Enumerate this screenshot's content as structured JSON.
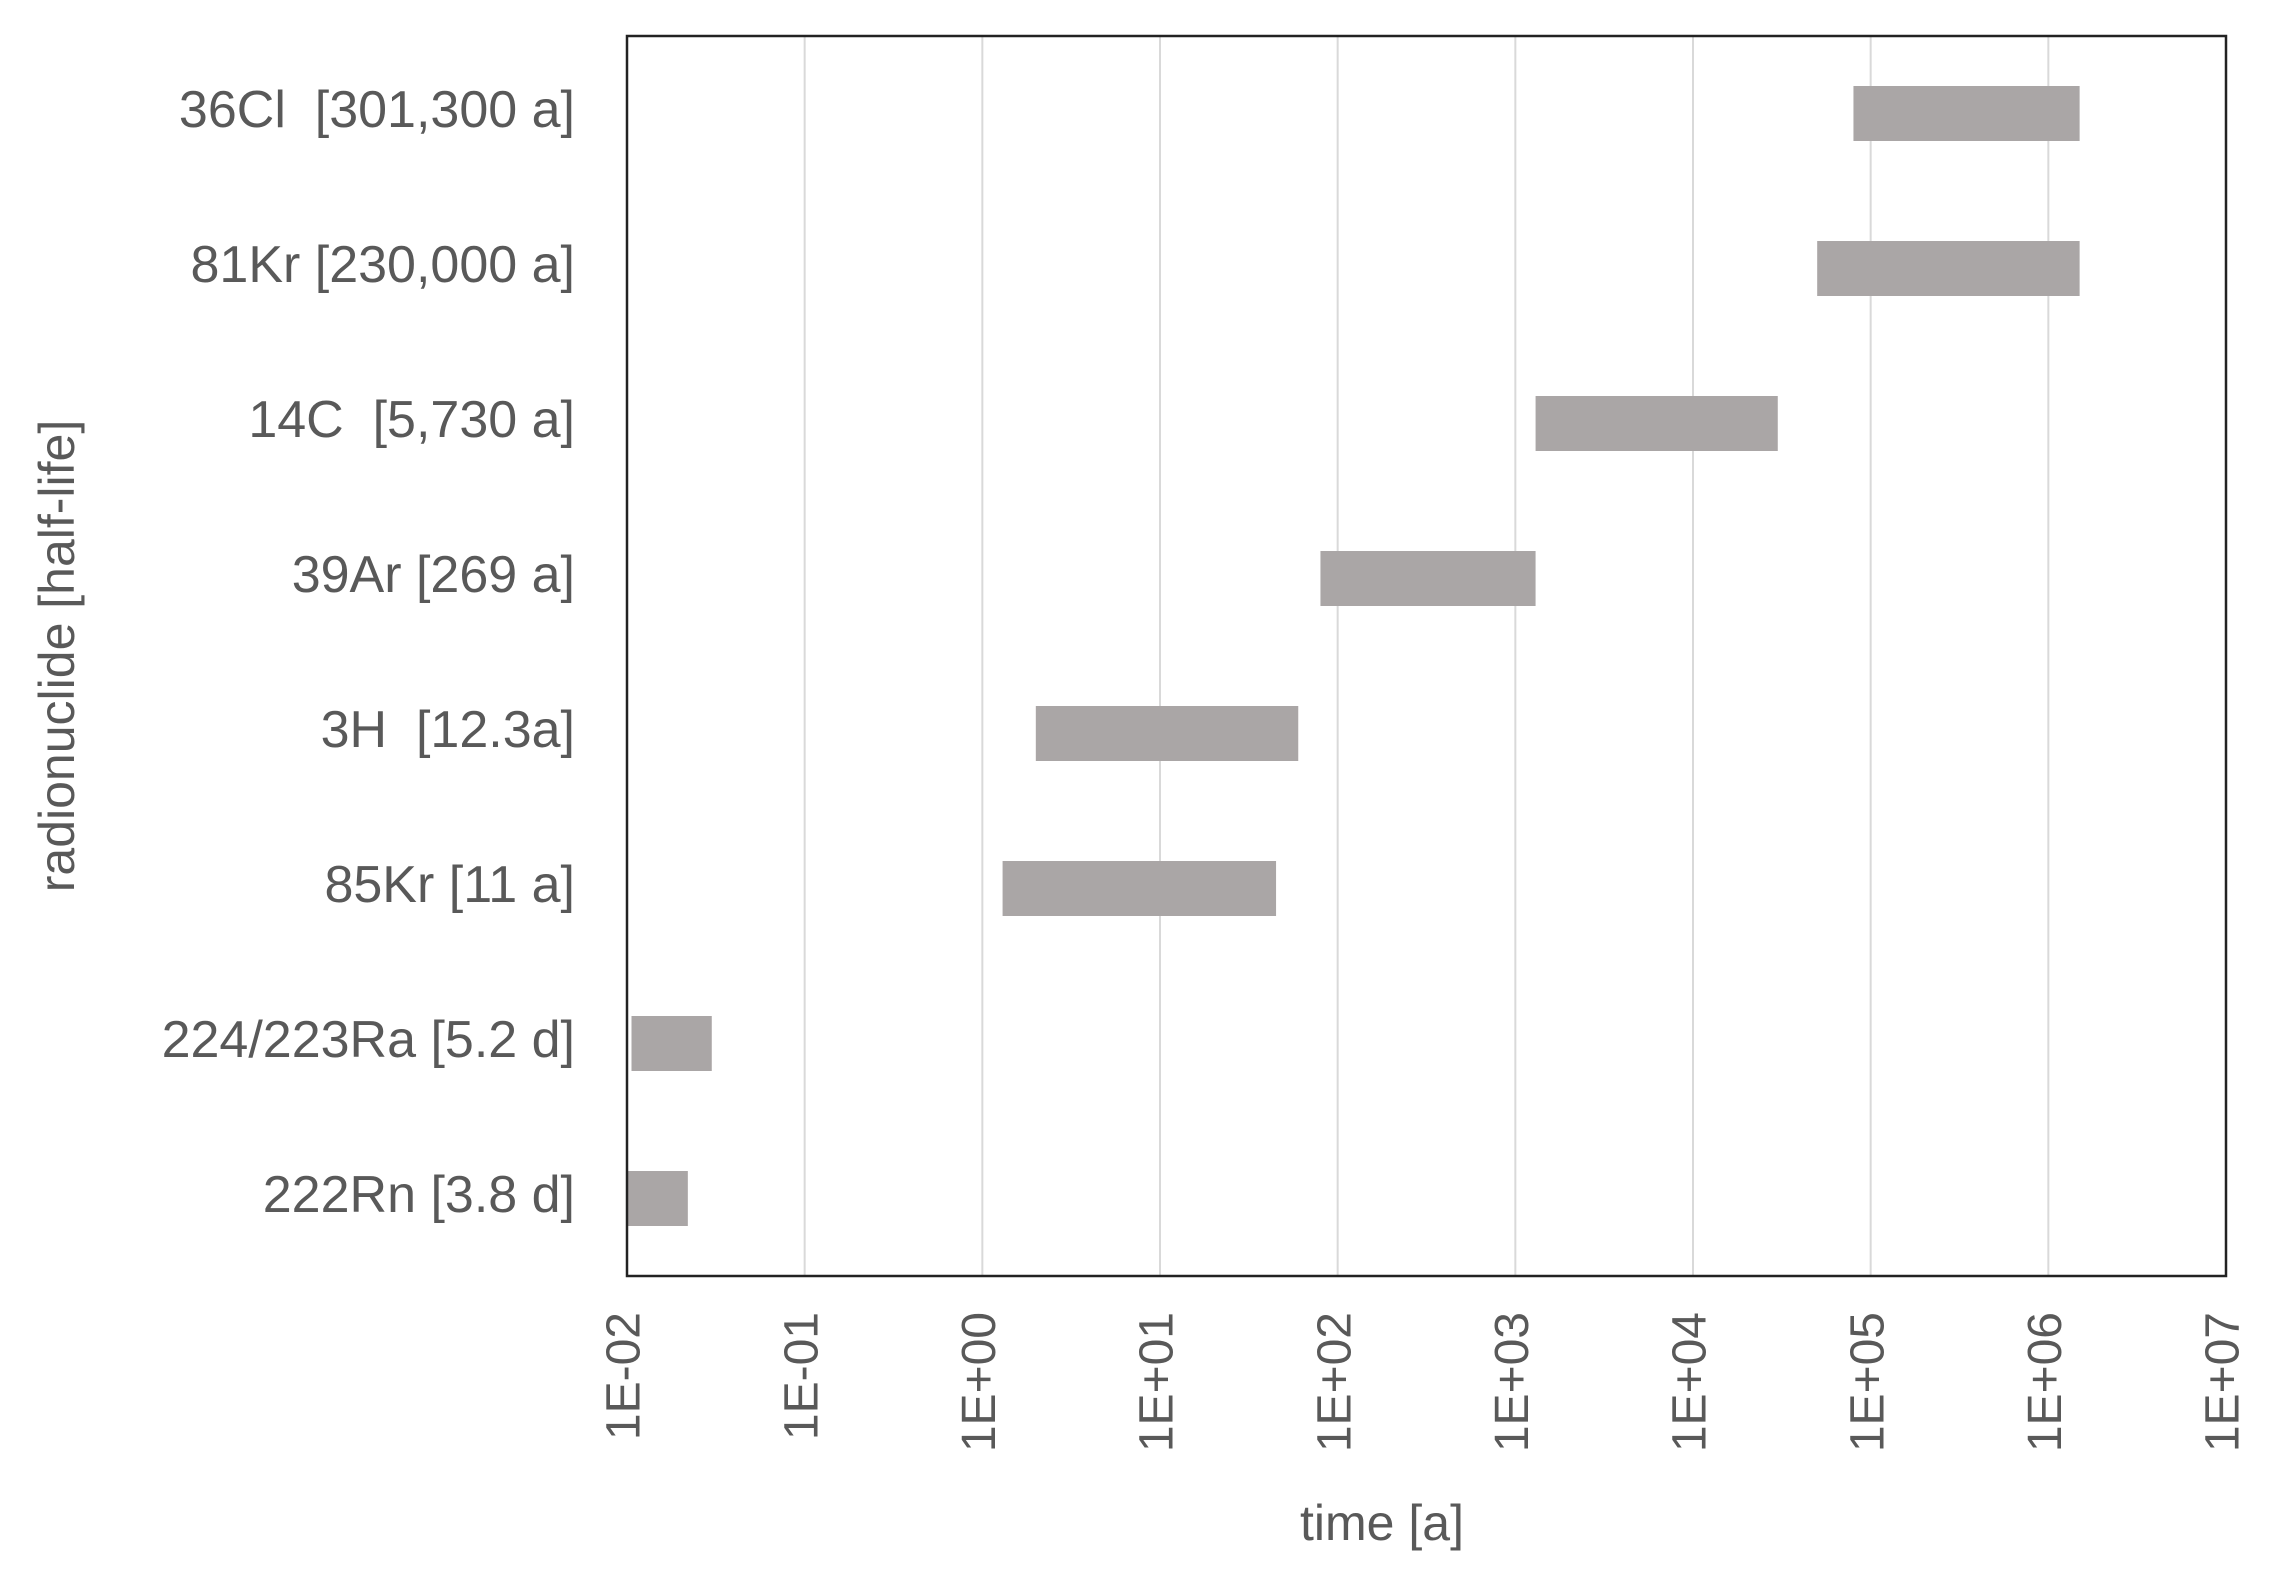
{
  "chart_data": {
    "type": "floating-bar",
    "orientation": "horizontal",
    "x_label": "time [a]",
    "y_label": "radionuclide [half-life]",
    "categories": [
      "36Cl  [301,300 a]",
      "81Kr [230,000 a]",
      "14C  [5,730 a]",
      "39Ar [269 a]",
      "3H  [12.3a]",
      "85Kr [11 a]",
      "224/223Ra [5.2 d]",
      "222Rn [3.8 d]"
    ],
    "start": [
      80000,
      50000,
      1300,
      80,
      2,
      1.3,
      0.0106,
      0.01
    ],
    "end": [
      1500000,
      1500000,
      30000,
      1300,
      60,
      45,
      0.03,
      0.022
    ],
    "color": "#aaa6a6",
    "xscale": "log",
    "xlim": [
      0.01,
      10000000
    ],
    "xticks": [
      {
        "value": 0.01,
        "label": "1E-02"
      },
      {
        "value": 0.1,
        "label": "1E-01"
      },
      {
        "value": 1,
        "label": "1E+00"
      },
      {
        "value": 10,
        "label": "1E+01"
      },
      {
        "value": 100,
        "label": "1E+02"
      },
      {
        "value": 1000,
        "label": "1E+03"
      },
      {
        "value": 10000,
        "label": "1E+04"
      },
      {
        "value": 100000,
        "label": "1E+05"
      },
      {
        "value": 1000000,
        "label": "1E+06"
      },
      {
        "value": 10000000,
        "label": "1E+07"
      }
    ],
    "grid": true
  }
}
